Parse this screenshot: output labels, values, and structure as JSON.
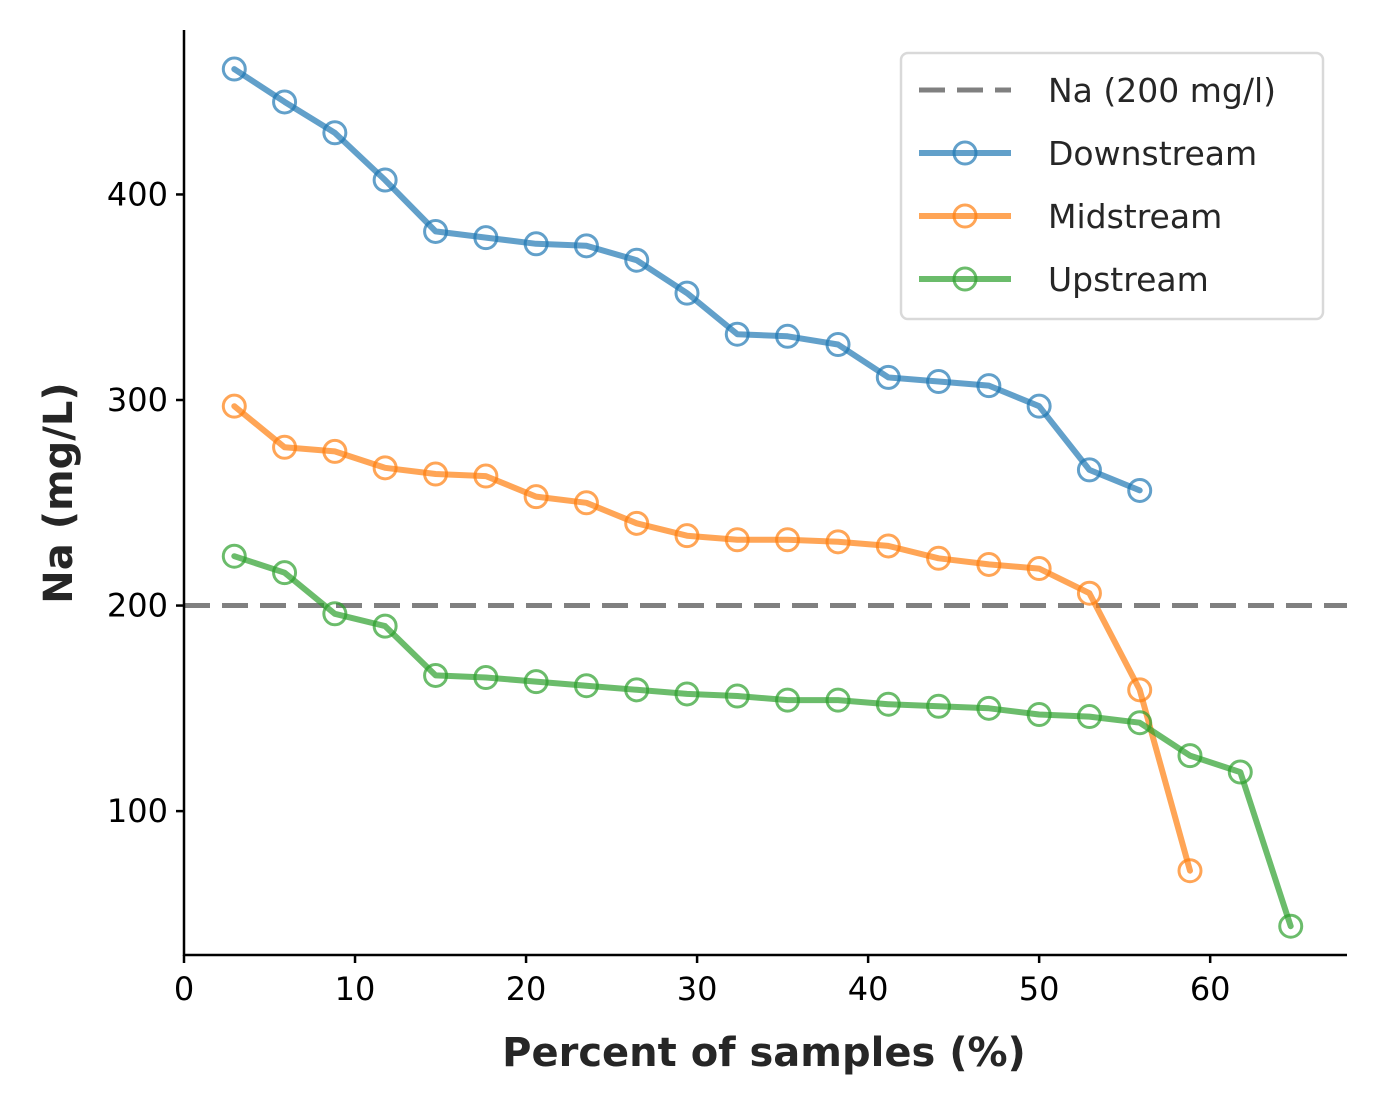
{
  "chart_data": {
    "type": "line",
    "xlabel": "Percent of samples (%)",
    "ylabel": "Na (mg/L)",
    "xlim": [
      0,
      68
    ],
    "ylim": [
      30,
      480
    ],
    "xticks": [
      0,
      10,
      20,
      30,
      40,
      50,
      60
    ],
    "yticks": [
      100,
      200,
      300,
      400
    ],
    "grid": false,
    "legend_position": "top-right",
    "reference_line": {
      "name": "Na (200 mg/l)",
      "y": 200,
      "color": "#808080",
      "style": "dashed"
    },
    "series": [
      {
        "name": "Downstream",
        "color": "#1f77b4",
        "x": [
          2.94,
          5.88,
          8.82,
          11.76,
          14.71,
          17.65,
          20.59,
          23.53,
          26.47,
          29.41,
          32.35,
          35.29,
          38.24,
          41.18,
          44.12,
          47.06,
          50.0,
          52.94,
          55.88
        ],
        "y": [
          461,
          445,
          430,
          407,
          382,
          379,
          376,
          375,
          368,
          352,
          332,
          331,
          327,
          311,
          309,
          307,
          297,
          266,
          256
        ]
      },
      {
        "name": "Midstream",
        "color": "#ff7f0e",
        "x": [
          2.94,
          5.88,
          8.82,
          11.76,
          14.71,
          17.65,
          20.59,
          23.53,
          26.47,
          29.41,
          32.35,
          35.29,
          38.24,
          41.18,
          44.12,
          47.06,
          50.0,
          52.94,
          55.88,
          58.82
        ],
        "y": [
          297,
          277,
          275,
          267,
          264,
          263,
          253,
          250,
          240,
          234,
          232,
          232,
          231,
          229,
          223,
          220,
          218,
          206,
          159,
          71
        ]
      },
      {
        "name": "Upstream",
        "color": "#2ca02c",
        "x": [
          2.94,
          5.88,
          8.82,
          11.76,
          14.71,
          17.65,
          20.59,
          23.53,
          26.47,
          29.41,
          32.35,
          35.29,
          38.24,
          41.18,
          44.12,
          47.06,
          50.0,
          52.94,
          55.88,
          58.82,
          61.76,
          64.71
        ],
        "y": [
          224,
          216,
          196,
          190,
          166,
          165,
          163,
          161,
          159,
          157,
          156,
          154,
          154,
          152,
          151,
          150,
          147,
          146,
          143,
          127,
          119,
          44
        ]
      }
    ]
  }
}
